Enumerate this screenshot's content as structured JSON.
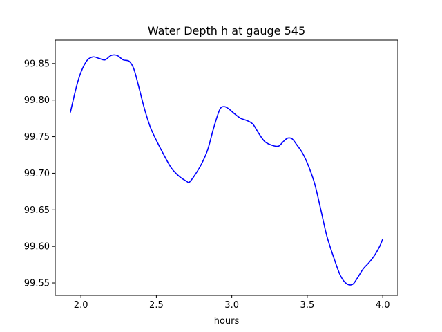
{
  "chart_data": {
    "type": "line",
    "title": "Water Depth h at gauge 545",
    "xlabel": "hours",
    "ylabel": "",
    "xlim": [
      1.83,
      4.1
    ],
    "ylim": [
      99.533,
      99.882
    ],
    "xticks": [
      2.0,
      2.5,
      3.0,
      3.5,
      4.0
    ],
    "xtick_labels": [
      "2.0",
      "2.5",
      "3.0",
      "3.5",
      "4.0"
    ],
    "yticks": [
      99.55,
      99.6,
      99.65,
      99.7,
      99.75,
      99.8,
      99.85
    ],
    "ytick_labels": [
      "99.55",
      "99.60",
      "99.65",
      "99.70",
      "99.75",
      "99.80",
      "99.85"
    ],
    "grid": false,
    "series": [
      {
        "color": "#0000ff",
        "x": [
          1.93,
          1.97,
          2.0,
          2.04,
          2.08,
          2.12,
          2.16,
          2.2,
          2.24,
          2.28,
          2.32,
          2.35,
          2.38,
          2.42,
          2.46,
          2.5,
          2.55,
          2.6,
          2.65,
          2.7,
          2.72,
          2.76,
          2.8,
          2.84,
          2.88,
          2.92,
          2.95,
          2.98,
          3.02,
          3.06,
          3.1,
          3.14,
          3.18,
          3.22,
          3.27,
          3.31,
          3.34,
          3.37,
          3.4,
          3.43,
          3.47,
          3.51,
          3.55,
          3.59,
          3.63,
          3.68,
          3.72,
          3.76,
          3.8,
          3.83,
          3.87,
          3.91,
          3.95,
          3.98,
          4.0
        ],
        "y": [
          99.783,
          99.818,
          99.838,
          99.854,
          99.859,
          99.857,
          99.855,
          99.861,
          99.861,
          99.855,
          99.853,
          99.843,
          99.821,
          99.789,
          99.763,
          99.745,
          99.725,
          99.707,
          99.696,
          99.689,
          99.688,
          99.699,
          99.713,
          99.732,
          99.762,
          99.787,
          99.791,
          99.788,
          99.781,
          99.775,
          99.772,
          99.767,
          99.754,
          99.743,
          99.738,
          99.737,
          99.743,
          99.748,
          99.747,
          99.739,
          99.727,
          99.709,
          99.685,
          99.65,
          99.614,
          99.582,
          99.56,
          99.549,
          99.548,
          99.556,
          99.569,
          99.578,
          99.589,
          99.6,
          99.61
        ]
      }
    ]
  }
}
